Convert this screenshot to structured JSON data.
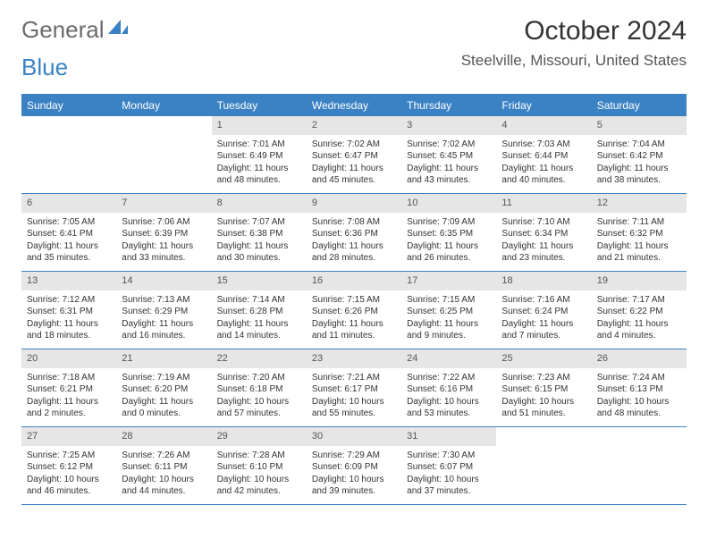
{
  "brand": {
    "word1": "General",
    "word2": "Blue"
  },
  "title": "October 2024",
  "location": "Steelville, Missouri, United States",
  "colors": {
    "brand_blue": "#3b82c4",
    "brand_gray": "#6b6b6b",
    "header_bg": "#3b82c4",
    "daynum_bg": "#e6e6e6",
    "text": "#333333"
  },
  "day_names": [
    "Sunday",
    "Monday",
    "Tuesday",
    "Wednesday",
    "Thursday",
    "Friday",
    "Saturday"
  ],
  "weeks": [
    [
      null,
      null,
      {
        "n": "1",
        "sr": "Sunrise: 7:01 AM",
        "ss": "Sunset: 6:49 PM",
        "dl": "Daylight: 11 hours and 48 minutes."
      },
      {
        "n": "2",
        "sr": "Sunrise: 7:02 AM",
        "ss": "Sunset: 6:47 PM",
        "dl": "Daylight: 11 hours and 45 minutes."
      },
      {
        "n": "3",
        "sr": "Sunrise: 7:02 AM",
        "ss": "Sunset: 6:45 PM",
        "dl": "Daylight: 11 hours and 43 minutes."
      },
      {
        "n": "4",
        "sr": "Sunrise: 7:03 AM",
        "ss": "Sunset: 6:44 PM",
        "dl": "Daylight: 11 hours and 40 minutes."
      },
      {
        "n": "5",
        "sr": "Sunrise: 7:04 AM",
        "ss": "Sunset: 6:42 PM",
        "dl": "Daylight: 11 hours and 38 minutes."
      }
    ],
    [
      {
        "n": "6",
        "sr": "Sunrise: 7:05 AM",
        "ss": "Sunset: 6:41 PM",
        "dl": "Daylight: 11 hours and 35 minutes."
      },
      {
        "n": "7",
        "sr": "Sunrise: 7:06 AM",
        "ss": "Sunset: 6:39 PM",
        "dl": "Daylight: 11 hours and 33 minutes."
      },
      {
        "n": "8",
        "sr": "Sunrise: 7:07 AM",
        "ss": "Sunset: 6:38 PM",
        "dl": "Daylight: 11 hours and 30 minutes."
      },
      {
        "n": "9",
        "sr": "Sunrise: 7:08 AM",
        "ss": "Sunset: 6:36 PM",
        "dl": "Daylight: 11 hours and 28 minutes."
      },
      {
        "n": "10",
        "sr": "Sunrise: 7:09 AM",
        "ss": "Sunset: 6:35 PM",
        "dl": "Daylight: 11 hours and 26 minutes."
      },
      {
        "n": "11",
        "sr": "Sunrise: 7:10 AM",
        "ss": "Sunset: 6:34 PM",
        "dl": "Daylight: 11 hours and 23 minutes."
      },
      {
        "n": "12",
        "sr": "Sunrise: 7:11 AM",
        "ss": "Sunset: 6:32 PM",
        "dl": "Daylight: 11 hours and 21 minutes."
      }
    ],
    [
      {
        "n": "13",
        "sr": "Sunrise: 7:12 AM",
        "ss": "Sunset: 6:31 PM",
        "dl": "Daylight: 11 hours and 18 minutes."
      },
      {
        "n": "14",
        "sr": "Sunrise: 7:13 AM",
        "ss": "Sunset: 6:29 PM",
        "dl": "Daylight: 11 hours and 16 minutes."
      },
      {
        "n": "15",
        "sr": "Sunrise: 7:14 AM",
        "ss": "Sunset: 6:28 PM",
        "dl": "Daylight: 11 hours and 14 minutes."
      },
      {
        "n": "16",
        "sr": "Sunrise: 7:15 AM",
        "ss": "Sunset: 6:26 PM",
        "dl": "Daylight: 11 hours and 11 minutes."
      },
      {
        "n": "17",
        "sr": "Sunrise: 7:15 AM",
        "ss": "Sunset: 6:25 PM",
        "dl": "Daylight: 11 hours and 9 minutes."
      },
      {
        "n": "18",
        "sr": "Sunrise: 7:16 AM",
        "ss": "Sunset: 6:24 PM",
        "dl": "Daylight: 11 hours and 7 minutes."
      },
      {
        "n": "19",
        "sr": "Sunrise: 7:17 AM",
        "ss": "Sunset: 6:22 PM",
        "dl": "Daylight: 11 hours and 4 minutes."
      }
    ],
    [
      {
        "n": "20",
        "sr": "Sunrise: 7:18 AM",
        "ss": "Sunset: 6:21 PM",
        "dl": "Daylight: 11 hours and 2 minutes."
      },
      {
        "n": "21",
        "sr": "Sunrise: 7:19 AM",
        "ss": "Sunset: 6:20 PM",
        "dl": "Daylight: 11 hours and 0 minutes."
      },
      {
        "n": "22",
        "sr": "Sunrise: 7:20 AM",
        "ss": "Sunset: 6:18 PM",
        "dl": "Daylight: 10 hours and 57 minutes."
      },
      {
        "n": "23",
        "sr": "Sunrise: 7:21 AM",
        "ss": "Sunset: 6:17 PM",
        "dl": "Daylight: 10 hours and 55 minutes."
      },
      {
        "n": "24",
        "sr": "Sunrise: 7:22 AM",
        "ss": "Sunset: 6:16 PM",
        "dl": "Daylight: 10 hours and 53 minutes."
      },
      {
        "n": "25",
        "sr": "Sunrise: 7:23 AM",
        "ss": "Sunset: 6:15 PM",
        "dl": "Daylight: 10 hours and 51 minutes."
      },
      {
        "n": "26",
        "sr": "Sunrise: 7:24 AM",
        "ss": "Sunset: 6:13 PM",
        "dl": "Daylight: 10 hours and 48 minutes."
      }
    ],
    [
      {
        "n": "27",
        "sr": "Sunrise: 7:25 AM",
        "ss": "Sunset: 6:12 PM",
        "dl": "Daylight: 10 hours and 46 minutes."
      },
      {
        "n": "28",
        "sr": "Sunrise: 7:26 AM",
        "ss": "Sunset: 6:11 PM",
        "dl": "Daylight: 10 hours and 44 minutes."
      },
      {
        "n": "29",
        "sr": "Sunrise: 7:28 AM",
        "ss": "Sunset: 6:10 PM",
        "dl": "Daylight: 10 hours and 42 minutes."
      },
      {
        "n": "30",
        "sr": "Sunrise: 7:29 AM",
        "ss": "Sunset: 6:09 PM",
        "dl": "Daylight: 10 hours and 39 minutes."
      },
      {
        "n": "31",
        "sr": "Sunrise: 7:30 AM",
        "ss": "Sunset: 6:07 PM",
        "dl": "Daylight: 10 hours and 37 minutes."
      },
      null,
      null
    ]
  ]
}
